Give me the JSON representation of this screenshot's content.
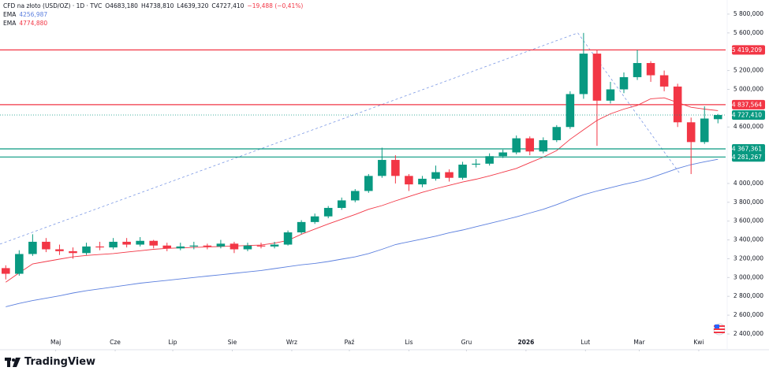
{
  "chart_data": {
    "type": "candlestick",
    "title": "CFD na złoto (USD/OZ) · 1D · TVC",
    "ohlc_labels": [
      "O4683,180",
      "H4738,810",
      "L4639,320",
      "C4727,410"
    ],
    "change": "−19,488 (−0,41%)",
    "logo": "TradingView",
    "up_color": "#089981",
    "down_color": "#f23645",
    "x": [
      2,
      9,
      16,
      23,
      30,
      37,
      44,
      51,
      58,
      65,
      72,
      79,
      86,
      93,
      100,
      107,
      114,
      121,
      128,
      135,
      142,
      149,
      156,
      163,
      170,
      177,
      184,
      191,
      198,
      205,
      212,
      219,
      226,
      233,
      240,
      247,
      254,
      261,
      268,
      275,
      282,
      289,
      296,
      303,
      310,
      317,
      324,
      331,
      338,
      345,
      352,
      359,
      366,
      373
    ],
    "open": [
      3100,
      3040,
      3250,
      3380,
      3300,
      3280,
      3260,
      3330,
      3320,
      3380,
      3350,
      3390,
      3340,
      3310,
      3330,
      3340,
      3330,
      3360,
      3300,
      3340,
      3330,
      3350,
      3480,
      3590,
      3650,
      3740,
      3820,
      3920,
      4080,
      4250,
      4080,
      3990,
      4050,
      4120,
      4060,
      4200,
      4210,
      4290,
      4330,
      4480,
      4340,
      4460,
      4600,
      4950,
      5380,
      4880,
      5000,
      5130,
      5280,
      5150,
      5030,
      4650,
      4440,
      4683.18
    ],
    "high": [
      3130,
      3290,
      3460,
      3420,
      3350,
      3320,
      3370,
      3380,
      3420,
      3420,
      3430,
      3400,
      3370,
      3370,
      3380,
      3360,
      3400,
      3380,
      3370,
      3370,
      3380,
      3500,
      3610,
      3680,
      3760,
      3850,
      3940,
      4100,
      4380,
      4300,
      4100,
      4080,
      4190,
      4150,
      4230,
      4260,
      4320,
      4360,
      4510,
      4500,
      4490,
      4620,
      4980,
      5600,
      5420,
      5080,
      5180,
      5420,
      5300,
      5200,
      5060,
      4700,
      4820,
      4738.81
    ],
    "low": [
      2980,
      3020,
      3230,
      3270,
      3240,
      3200,
      3240,
      3290,
      3300,
      3320,
      3330,
      3310,
      3280,
      3290,
      3300,
      3300,
      3310,
      3260,
      3280,
      3310,
      3310,
      3340,
      3460,
      3570,
      3630,
      3720,
      3800,
      3900,
      4060,
      4000,
      3920,
      3960,
      4030,
      4020,
      4040,
      4170,
      4190,
      4270,
      4310,
      4300,
      4320,
      4440,
      4580,
      4900,
      4400,
      4850,
      4960,
      5100,
      5080,
      4980,
      4600,
      4100,
      4420,
      4639.32
    ],
    "close": [
      3040,
      3250,
      3380,
      3300,
      3280,
      3260,
      3330,
      3320,
      3380,
      3350,
      3390,
      3340,
      3310,
      3330,
      3340,
      3330,
      3360,
      3300,
      3340,
      3330,
      3350,
      3480,
      3590,
      3650,
      3740,
      3820,
      3920,
      4080,
      4250,
      4080,
      3990,
      4050,
      4120,
      4060,
      4200,
      4210,
      4290,
      4330,
      4480,
      4340,
      4460,
      4600,
      4950,
      5380,
      4880,
      5000,
      5130,
      5280,
      5150,
      5030,
      4650,
      4440,
      4690,
      4727.41
    ],
    "close_label": "4 727,410",
    "ema": [
      {
        "name": "EMA",
        "last_label": "4256,987",
        "color": "#5b7fde",
        "values": [
          2690,
          2725,
          2755,
          2780,
          2805,
          2835,
          2860,
          2880,
          2900,
          2920,
          2940,
          2955,
          2970,
          2985,
          3000,
          3015,
          3030,
          3045,
          3060,
          3075,
          3095,
          3115,
          3135,
          3150,
          3170,
          3195,
          3220,
          3255,
          3300,
          3350,
          3380,
          3410,
          3440,
          3475,
          3505,
          3540,
          3575,
          3610,
          3645,
          3685,
          3725,
          3775,
          3830,
          3880,
          3920,
          3955,
          3990,
          4020,
          4060,
          4110,
          4160,
          4200,
          4230,
          4256.987
        ]
      },
      {
        "name": "EMA",
        "last_label": "4774,880",
        "color": "#f23645",
        "values": [
          2950,
          3050,
          3145,
          3170,
          3195,
          3220,
          3235,
          3245,
          3255,
          3270,
          3285,
          3300,
          3310,
          3315,
          3320,
          3325,
          3330,
          3335,
          3340,
          3345,
          3365,
          3395,
          3460,
          3515,
          3570,
          3620,
          3670,
          3725,
          3765,
          3815,
          3860,
          3905,
          3945,
          3980,
          4015,
          4045,
          4080,
          4120,
          4160,
          4220,
          4280,
          4350,
          4470,
          4570,
          4670,
          4740,
          4790,
          4830,
          4900,
          4910,
          4860,
          4810,
          4790,
          4774.88
        ]
      }
    ],
    "levels": [
      {
        "value": 5419.209,
        "label": "5 419,209",
        "color": "#f23645"
      },
      {
        "value": 4837.564,
        "label": "4 837,564",
        "color": "#f23645"
      },
      {
        "value": 4367.361,
        "label": "4 367,361",
        "color": "#089981"
      },
      {
        "value": 4281.267,
        "label": "4 281,267",
        "color": "#089981"
      }
    ],
    "trend_lines": [
      {
        "x": [
          -1,
          300
        ],
        "y": [
          3355,
          5600
        ],
        "color": "#5b7fde"
      },
      {
        "x": [
          300,
          353
        ],
        "y": [
          5600,
          4110
        ],
        "color": "#5b7fde"
      }
    ],
    "xlim": [
      -1,
      377
    ],
    "xticks": [
      {
        "value": 28,
        "label": "Maj"
      },
      {
        "value": 59,
        "label": "Cze"
      },
      {
        "value": 89,
        "label": "Lip"
      },
      {
        "value": 120,
        "label": "Sie"
      },
      {
        "value": 151,
        "label": "Wrz"
      },
      {
        "value": 181,
        "label": "Paź"
      },
      {
        "value": 212,
        "label": "Lis"
      },
      {
        "value": 242,
        "label": "Gru"
      },
      {
        "value": 273,
        "label": "2026"
      },
      {
        "value": 304,
        "label": "Lut"
      },
      {
        "value": 332,
        "label": "Mar"
      },
      {
        "value": 363,
        "label": "Kwi"
      }
    ],
    "ylim": [
      2266,
      5950
    ],
    "yticks": [
      {
        "value": 5800,
        "label": "5 800,000"
      },
      {
        "value": 5600,
        "label": "5 600,000"
      },
      {
        "value": 5200,
        "label": "5 200,000"
      },
      {
        "value": 5000,
        "label": "5 000,000"
      },
      {
        "value": 4600,
        "label": "4 600,000"
      },
      {
        "value": 4000,
        "label": "4 000,000"
      },
      {
        "value": 3800,
        "label": "3 800,000"
      },
      {
        "value": 3600,
        "label": "3 600,000"
      },
      {
        "value": 3400,
        "label": "3 400,000"
      },
      {
        "value": 3200,
        "label": "3 200,000"
      },
      {
        "value": 3000,
        "label": "3 000,000"
      },
      {
        "value": 2800,
        "label": "2 800,000"
      },
      {
        "value": 2600,
        "label": "2 600,000"
      },
      {
        "value": 2400,
        "label": "2 400,000"
      }
    ]
  }
}
